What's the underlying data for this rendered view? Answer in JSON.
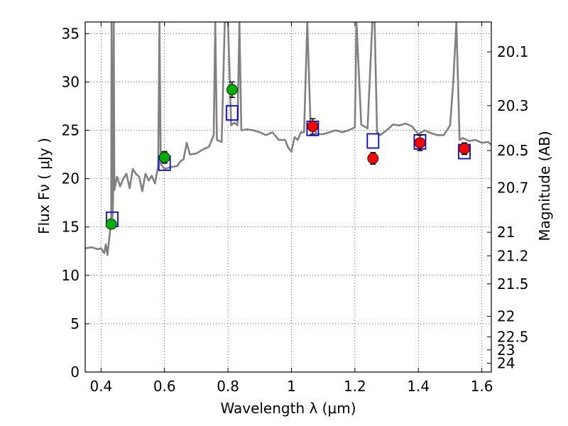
{
  "chart_data": {
    "type": "scatter",
    "xlabel": "Wavelength  λ (μm)",
    "ylabel": "Flux  Fν  ( μJy )",
    "ylabel_right": "Magnitude (AB)",
    "xlim": [
      0.35,
      1.63
    ],
    "ylim": [
      0,
      36.2
    ],
    "x_ticks": [
      0.4,
      0.6,
      0.8,
      1.0,
      1.2,
      1.4,
      1.6
    ],
    "x_tick_labels": [
      "0.4",
      "0.6",
      "0.8",
      "1",
      "1.2",
      "1.4",
      "1.6"
    ],
    "y_ticks": [
      0,
      5,
      10,
      15,
      20,
      25,
      30,
      35
    ],
    "y_tick_labels": [
      "0",
      "5",
      "10",
      "15",
      "20",
      "25",
      "30",
      "35"
    ],
    "right_ticks": [
      {
        "mag": 20.1,
        "label": "20.1"
      },
      {
        "mag": 20.3,
        "label": "20.3"
      },
      {
        "mag": 20.5,
        "label": "20.5"
      },
      {
        "mag": 20.7,
        "label": "20.7"
      },
      {
        "mag": 21.0,
        "label": "21"
      },
      {
        "mag": 21.2,
        "label": "21.2"
      },
      {
        "mag": 21.5,
        "label": "21.5"
      },
      {
        "mag": 22.0,
        "label": "22"
      },
      {
        "mag": 22.5,
        "label": "22.5"
      },
      {
        "mag": 23.0,
        "label": "23"
      },
      {
        "mag": 24.0,
        "label": "24"
      }
    ],
    "grid": true,
    "series": [
      {
        "kind": "model_spectrum",
        "color": "#808080",
        "points": [
          [
            0.35,
            12.8
          ],
          [
            0.37,
            12.9
          ],
          [
            0.39,
            12.7
          ],
          [
            0.4,
            12.8
          ],
          [
            0.41,
            12.3
          ],
          [
            0.415,
            13.2
          ],
          [
            0.42,
            12.1
          ],
          [
            0.428,
            14.5
          ],
          [
            0.432,
            15.5
          ],
          [
            0.433,
            36.2
          ],
          [
            0.436,
            16.0
          ],
          [
            0.438,
            17.8
          ],
          [
            0.44,
            36.2
          ],
          [
            0.442,
            18.8
          ],
          [
            0.45,
            20.2
          ],
          [
            0.46,
            19.2
          ],
          [
            0.47,
            20.0
          ],
          [
            0.48,
            20.5
          ],
          [
            0.49,
            19.0
          ],
          [
            0.5,
            21.0
          ],
          [
            0.51,
            20.5
          ],
          [
            0.52,
            20.2
          ],
          [
            0.53,
            18.7
          ],
          [
            0.54,
            20.5
          ],
          [
            0.55,
            19.8
          ],
          [
            0.56,
            20.3
          ],
          [
            0.57,
            19.5
          ],
          [
            0.58,
            21.3
          ],
          [
            0.584,
            36.2
          ],
          [
            0.588,
            21.5
          ],
          [
            0.6,
            21.0
          ],
          [
            0.62,
            21.2
          ],
          [
            0.64,
            21.3
          ],
          [
            0.65,
            21.8
          ],
          [
            0.66,
            22.0
          ],
          [
            0.67,
            23.7
          ],
          [
            0.68,
            22.5
          ],
          [
            0.7,
            22.6
          ],
          [
            0.72,
            23.0
          ],
          [
            0.74,
            23.3
          ],
          [
            0.755,
            24.5
          ],
          [
            0.76,
            36.2
          ],
          [
            0.765,
            24.0
          ],
          [
            0.78,
            23.8
          ],
          [
            0.79,
            36.2
          ],
          [
            0.8,
            36.2
          ],
          [
            0.81,
            25.5
          ],
          [
            0.82,
            25.8
          ],
          [
            0.83,
            25.5
          ],
          [
            0.836,
            36.2
          ],
          [
            0.842,
            25.0
          ],
          [
            0.86,
            25.1
          ],
          [
            0.88,
            25.0
          ],
          [
            0.9,
            24.8
          ],
          [
            0.92,
            24.5
          ],
          [
            0.94,
            24.8
          ],
          [
            0.96,
            24.0
          ],
          [
            0.98,
            24.0
          ],
          [
            0.99,
            23.2
          ],
          [
            1.0,
            22.8
          ],
          [
            1.01,
            24.3
          ],
          [
            1.02,
            24.0
          ],
          [
            1.03,
            24.8
          ],
          [
            1.04,
            24.8
          ],
          [
            1.05,
            36.2
          ],
          [
            1.06,
            25.8
          ],
          [
            1.08,
            24.6
          ],
          [
            1.1,
            24.6
          ],
          [
            1.12,
            24.8
          ],
          [
            1.14,
            25.0
          ],
          [
            1.16,
            24.8
          ],
          [
            1.18,
            25.0
          ],
          [
            1.2,
            25.3
          ],
          [
            1.205,
            36.2
          ],
          [
            1.22,
            25.6
          ],
          [
            1.24,
            25.2
          ],
          [
            1.255,
            36.2
          ],
          [
            1.262,
            36.2
          ],
          [
            1.27,
            24.8
          ],
          [
            1.28,
            24.5
          ],
          [
            1.3,
            25.0
          ],
          [
            1.32,
            25.6
          ],
          [
            1.34,
            25.5
          ],
          [
            1.36,
            25.7
          ],
          [
            1.38,
            25.4
          ],
          [
            1.4,
            24.6
          ],
          [
            1.42,
            25.0
          ],
          [
            1.44,
            24.7
          ],
          [
            1.46,
            24.5
          ],
          [
            1.48,
            24.5
          ],
          [
            1.5,
            25.5
          ],
          [
            1.51,
            30.0
          ],
          [
            1.52,
            36.2
          ],
          [
            1.53,
            24.0
          ],
          [
            1.54,
            24.2
          ],
          [
            1.56,
            23.9
          ],
          [
            1.58,
            24.0
          ],
          [
            1.6,
            23.7
          ],
          [
            1.62,
            23.8
          ],
          [
            1.63,
            23.5
          ]
        ]
      },
      {
        "kind": "model_photometry",
        "marker": "square",
        "color": "#0000ff",
        "points": [
          [
            0.435,
            15.8
          ],
          [
            0.6,
            21.6
          ],
          [
            0.813,
            26.8
          ],
          [
            1.067,
            25.2
          ],
          [
            1.257,
            23.9
          ],
          [
            1.405,
            23.8
          ],
          [
            1.545,
            22.8
          ]
        ]
      },
      {
        "kind": "observed_green",
        "marker": "circle",
        "color": "#00b000",
        "points": [
          [
            0.432,
            15.3,
            0.3
          ],
          [
            0.6,
            22.2,
            0.6
          ],
          [
            0.813,
            29.2,
            0.8
          ]
        ]
      },
      {
        "kind": "observed_red",
        "marker": "circle",
        "color": "#ff0000",
        "points": [
          [
            1.067,
            25.4,
            0.8
          ],
          [
            1.257,
            22.1,
            0.6
          ],
          [
            1.405,
            23.7,
            0.8
          ],
          [
            1.545,
            23.1,
            0.6
          ]
        ]
      }
    ]
  }
}
